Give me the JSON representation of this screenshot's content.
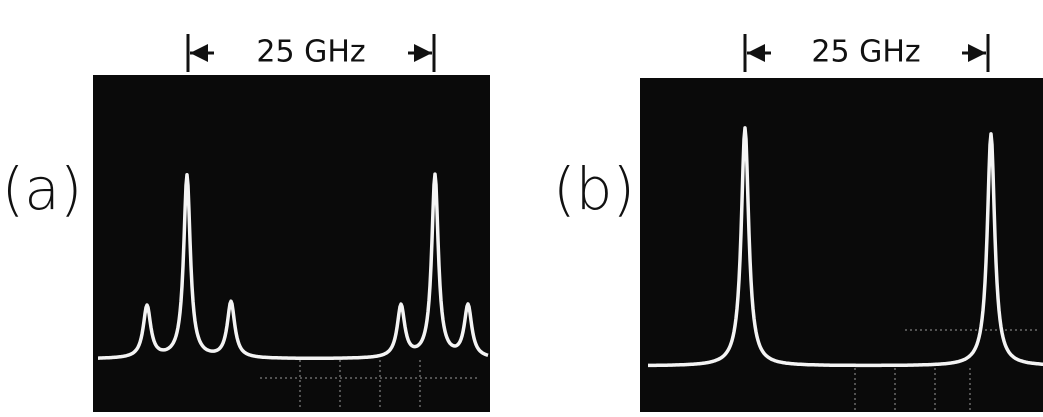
{
  "panels": [
    {
      "label": "(a)",
      "span_label": "25 GHz"
    },
    {
      "label": "(b)",
      "span_label": "25 GHz"
    }
  ]
}
